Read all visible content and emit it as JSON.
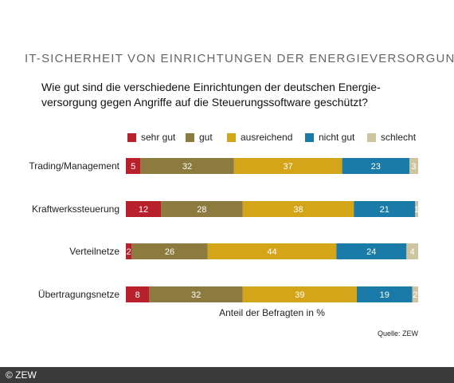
{
  "title": "IT-SICHERHEIT VON EINRICHTUNGEN DER ENERGIEVERSORGUNG",
  "question": "Wie gut sind die verschiedene Einrichtungen der deutschen Energie­versorgung gegen Angriffe auf die Steuerungssoftware geschützt?",
  "source": "Quelle: ZEW",
  "copyright": "© ZEW",
  "chart_data": {
    "type": "bar",
    "orientation": "horizontal",
    "stacked": true,
    "categories": [
      "Trading/Management",
      "Kraftwerkssteuerung",
      "Verteilnetze",
      "Übertragungsnetze"
    ],
    "series": [
      {
        "name": "sehr gut",
        "color": "#b8202c",
        "values": [
          5,
          12,
          2,
          8
        ]
      },
      {
        "name": "gut",
        "color": "#8c7a3e",
        "values": [
          32,
          28,
          26,
          32
        ]
      },
      {
        "name": "ausreichend",
        "color": "#d4a419",
        "values": [
          37,
          38,
          44,
          39
        ]
      },
      {
        "name": "nicht gut",
        "color": "#1a7ba8",
        "values": [
          23,
          21,
          24,
          19
        ]
      },
      {
        "name": "schlecht",
        "color": "#cfc4a0",
        "values": [
          3,
          1,
          4,
          2
        ]
      }
    ],
    "xlabel": "Anteil der Befragten in %",
    "xlim": [
      0,
      100
    ],
    "grid": false,
    "legend_position": "top-right",
    "value_label_color": "#ffffff"
  }
}
